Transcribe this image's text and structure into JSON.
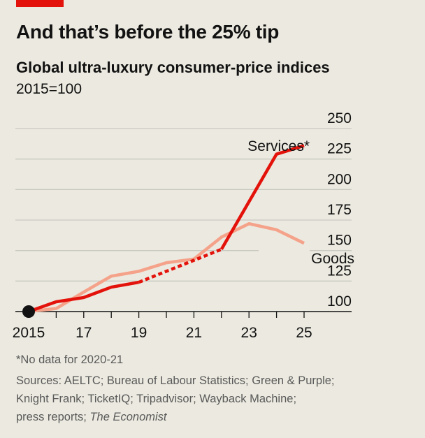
{
  "chart_data": {
    "type": "line",
    "title": "And that’s before the 25% tip",
    "subtitle": "Global ultra-luxury consumer-price indices",
    "unit_label": "2015=100",
    "x": [
      2015,
      2016,
      2017,
      2018,
      2019,
      2020,
      2021,
      2022,
      2023,
      2024,
      2025
    ],
    "xticks": [
      2015,
      2017,
      2019,
      2021,
      2023,
      2025
    ],
    "xtick_labels": [
      "2015",
      "17",
      "19",
      "21",
      "23",
      "25"
    ],
    "yticks": [
      100,
      125,
      150,
      175,
      200,
      225,
      250
    ],
    "ylim": [
      100,
      250
    ],
    "grid": true,
    "series": [
      {
        "name": "Goods",
        "color": "#f5a28a",
        "values": [
          100,
          102.5,
          116,
          129,
          133,
          140,
          143,
          161,
          172,
          167,
          156
        ]
      },
      {
        "name": "Services*",
        "color": "#e3120b",
        "values": [
          100,
          108,
          111.5,
          120,
          124,
          null,
          142,
          151,
          null,
          229,
          236
        ]
      }
    ]
  },
  "footer": {
    "note": "*No data for 2020-21",
    "sources_1": "Sources: AELTC; Bureau of Labour Statistics; Green & Purple;",
    "sources_2": "Knight Frank; TicketIQ; Tripadvisor; Wayback Machine;",
    "sources_3": "press reports; ",
    "sources_4": "The Economist"
  },
  "colors": {
    "accent": "#e3120b",
    "goods": "#f5a28a",
    "background": "#eceae0"
  }
}
